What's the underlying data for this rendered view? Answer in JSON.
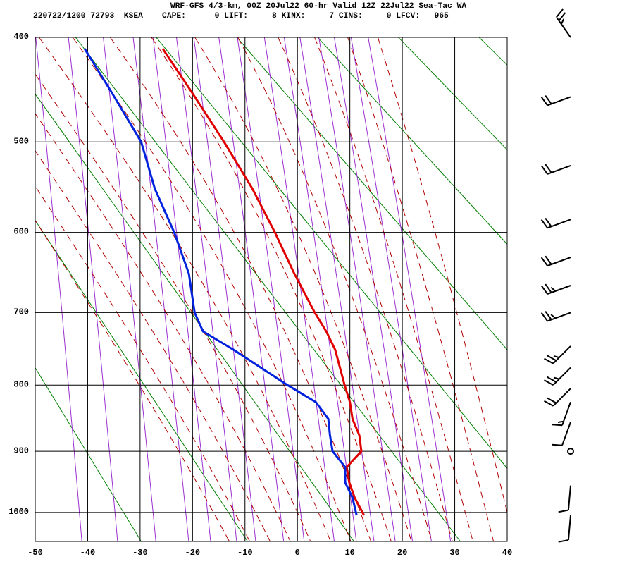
{
  "chart_data": {
    "type": "sounding",
    "title": "WRF-GFS 4/3-km, 00Z 20Jul22 60-hr Valid 12Z 22Jul22 Sea-Tac WA",
    "subtitle": "220722/1200 72793  KSEA    CAPE:      0 LIFT:     8 KINX:     7 CINS:     0 LFCV:   965",
    "xlim": [
      -50,
      40
    ],
    "xticks": [
      -50,
      -40,
      -30,
      -20,
      -10,
      0,
      10,
      20,
      30,
      40
    ],
    "ylim": [
      400,
      1050
    ],
    "yticks": [
      400,
      500,
      600,
      700,
      800,
      900,
      1000
    ],
    "yscale": "exner",
    "grid": true,
    "pressure": [
      1005,
      975,
      950,
      925,
      900,
      875,
      850,
      825,
      800,
      750,
      725,
      700,
      650,
      600,
      550,
      500,
      450,
      410
    ],
    "series": [
      {
        "name": "Temperature",
        "color": "#e00000",
        "values": [
          12.7,
          10.9,
          9.9,
          9.4,
          12.2,
          11.8,
          10.5,
          10.0,
          9.0,
          7.2,
          5.5,
          3.3,
          -0.6,
          -4.3,
          -8.6,
          -14.0,
          -20.2,
          -25.7
        ]
      },
      {
        "name": "Dewpoint",
        "color": "#0022dd",
        "values": [
          11.3,
          10.5,
          9.1,
          9.1,
          6.7,
          6.2,
          5.9,
          3.5,
          -1.9,
          -12.2,
          -18.0,
          -19.6,
          -20.7,
          -23.5,
          -27.2,
          -29.8,
          -35.5,
          -40.6
        ]
      }
    ],
    "winds": {
      "pressure": [
        400,
        455,
        525,
        585,
        630,
        665,
        700,
        745,
        775,
        805,
        825,
        855,
        900,
        955,
        1005
      ],
      "direction": [
        325,
        250,
        250,
        250,
        250,
        250,
        250,
        225,
        225,
        225,
        200,
        200,
        0,
        185,
        185
      ],
      "speed": [
        25,
        20,
        20,
        20,
        20,
        25,
        25,
        25,
        25,
        20,
        15,
        10,
        0,
        10,
        10
      ]
    }
  }
}
